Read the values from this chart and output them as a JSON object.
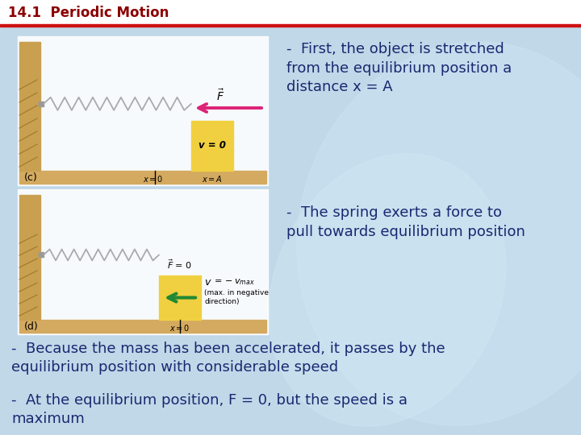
{
  "title": "14.1  Periodic Motion",
  "title_color": "#8B0000",
  "bg_color": "#b8d4e0",
  "text_color": "#1a2870",
  "text1_right": "-  First, the object is stretched\nfrom the equilibrium position a\ndistance x = A",
  "text2_right": "-  The spring exerts a force to\npull towards equilibrium position",
  "text3_bottom": "-  Because the mass has been accelerated, it passes by the\nequilibrium position with considerable speed",
  "text4_bottom": "-  At the equilibrium position, F = 0, but the speed is a\nmaximum",
  "label_c": "(c)",
  "label_d": "(d)",
  "diagram_border": "#cccccc",
  "wall_color": "#c8a050",
  "floor_color": "#d4aa60",
  "block_color": "#f0d040",
  "spring_color": "#888888",
  "arrow_pink": "#dd2277",
  "arrow_green": "#228833"
}
